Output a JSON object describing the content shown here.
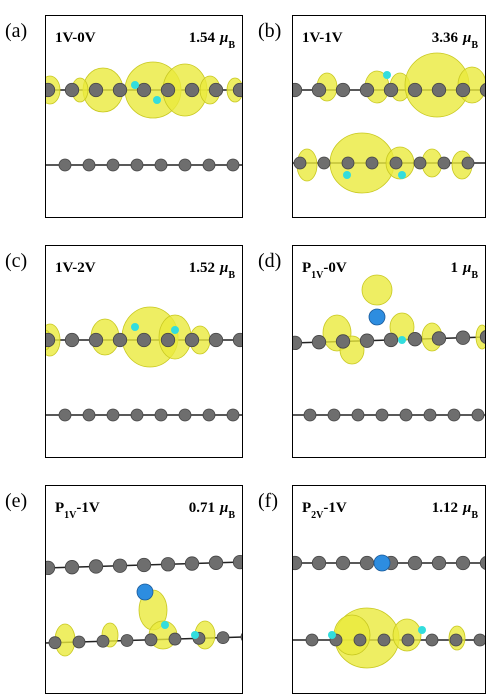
{
  "panels": [
    {
      "letter": "(a)",
      "label": [
        {
          "text": "1V-0V"
        }
      ],
      "moment": {
        "value": "1.54",
        "symbol": "μ",
        "subscript": "B"
      }
    },
    {
      "letter": "(b)",
      "label": [
        {
          "text": "1V-1V"
        }
      ],
      "moment": {
        "value": "3.36",
        "symbol": "μ",
        "subscript": "B"
      }
    },
    {
      "letter": "(c)",
      "label": [
        {
          "text": "1V-2V"
        }
      ],
      "moment": {
        "value": "1.52",
        "symbol": "μ",
        "subscript": "B"
      }
    },
    {
      "letter": "(d)",
      "label": [
        {
          "text": "P"
        },
        {
          "text": "1V",
          "sub": true
        },
        {
          "text": "-0V"
        }
      ],
      "moment": {
        "value": "1",
        "symbol": "μ",
        "subscript": "B"
      }
    },
    {
      "letter": "(e)",
      "label": [
        {
          "text": "P"
        },
        {
          "text": "1V",
          "sub": true
        },
        {
          "text": "-1V"
        }
      ],
      "moment": {
        "value": "0.71",
        "symbol": "μ",
        "subscript": "B"
      }
    },
    {
      "letter": "(f)",
      "label": [
        {
          "text": "P"
        },
        {
          "text": "2V",
          "sub": true
        },
        {
          "text": "-1V"
        }
      ],
      "moment": {
        "value": "1.12",
        "symbol": "μ",
        "subscript": "B"
      }
    }
  ]
}
